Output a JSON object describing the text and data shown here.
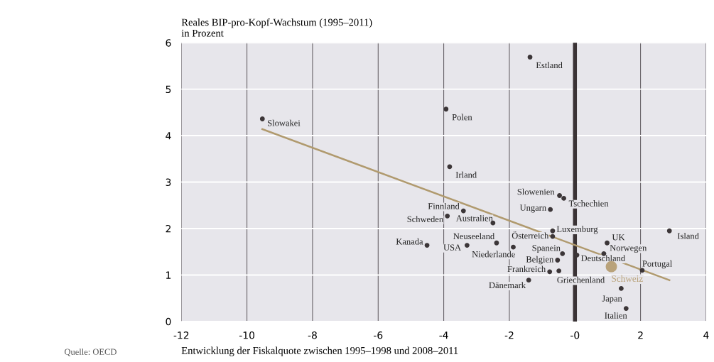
{
  "chart_data": {
    "type": "scatter",
    "ylabel": "Reales BIP-pro-Kopf-Wachstum (1995–2011)\nin Prozent",
    "xlabel": "Entwicklung der Fiskalquote zwischen 1995–1998 und 2008–2011",
    "xlim": [
      -12,
      4
    ],
    "xticks": [
      -12,
      -10,
      -8,
      -6,
      -4,
      -2,
      {
        "value": 0,
        "label": "-0"
      },
      2,
      4
    ],
    "ylim": [
      0,
      6
    ],
    "yticks": [
      0,
      1,
      2,
      3,
      4,
      5,
      6
    ],
    "grid": true,
    "marker": "circle",
    "ref_lines": [
      {
        "axis": "x",
        "value": 0,
        "label": null,
        "color": "#3a3335"
      }
    ],
    "series": [
      {
        "color": "#3c3638",
        "x": [
          -9.53,
          -1.37,
          -3.93,
          -3.82,
          -0.47,
          -0.34,
          -0.75,
          -3.4,
          -3.89,
          -2.5,
          -0.68,
          -0.68,
          -4.51,
          -2.39,
          -3.29,
          -1.88,
          -0.38,
          0.06,
          -0.53,
          -0.77,
          -0.49,
          -1.41,
          0.98,
          0.88,
          2.05,
          1.41,
          1.56,
          2.88
        ],
        "values": [
          4.36,
          5.69,
          4.57,
          3.33,
          2.71,
          2.65,
          2.41,
          2.38,
          2.27,
          2.12,
          1.95,
          1.83,
          1.64,
          1.69,
          1.64,
          1.6,
          1.46,
          1.43,
          1.32,
          1.07,
          1.09,
          0.89,
          1.69,
          1.46,
          1.1,
          0.71,
          0.28,
          1.95
        ]
      },
      {
        "name": "Schweiz",
        "color": "#b9a27a",
        "x": [
          1.11
        ],
        "values": [
          1.18
        ]
      },
      {
        "type": "line",
        "color": "#b09a6e",
        "marker": "none",
        "x": [
          -9.53,
          2.88
        ],
        "values": [
          4.14,
          0.89
        ]
      }
    ],
    "annotations": [
      {
        "text": "Slowakei",
        "x": -9.53,
        "y": 4.36
      },
      {
        "text": "Estland",
        "x": -1.37,
        "y": 5.69
      },
      {
        "text": "Polen",
        "x": -3.93,
        "y": 4.57
      },
      {
        "text": "Irland",
        "x": -3.82,
        "y": 3.33
      },
      {
        "text": "Slowenien",
        "x": -0.47,
        "y": 2.71
      },
      {
        "text": "Tschechien",
        "x": -0.34,
        "y": 2.65
      },
      {
        "text": "Ungarn",
        "x": -0.75,
        "y": 2.41
      },
      {
        "text": "Finnland",
        "x": -3.4,
        "y": 2.38
      },
      {
        "text": "Schweden",
        "x": -3.89,
        "y": 2.27
      },
      {
        "text": "Australien",
        "x": -2.5,
        "y": 2.12
      },
      {
        "text": "Luxemburg",
        "x": -0.68,
        "y": 1.95
      },
      {
        "text": "Österreich",
        "x": -0.68,
        "y": 1.83
      },
      {
        "text": "Kanada",
        "x": -4.51,
        "y": 1.64
      },
      {
        "text": "Neuseeland",
        "x": -2.39,
        "y": 1.69
      },
      {
        "text": "USA",
        "x": -3.29,
        "y": 1.64
      },
      {
        "text": "Niederlande",
        "x": -1.88,
        "y": 1.6
      },
      {
        "text": "Spanein",
        "x": -0.38,
        "y": 1.46
      },
      {
        "text": "Deutschland",
        "x": 0.06,
        "y": 1.43
      },
      {
        "text": "Belgien",
        "x": -0.53,
        "y": 1.32
      },
      {
        "text": "Frankreich",
        "x": -0.77,
        "y": 1.07
      },
      {
        "text": "Griechenland",
        "x": -0.49,
        "y": 1.09
      },
      {
        "text": "Dänemark",
        "x": -1.41,
        "y": 0.89
      },
      {
        "text": "UK",
        "x": 0.98,
        "y": 1.69
      },
      {
        "text": "Norwegen",
        "x": 0.88,
        "y": 1.46
      },
      {
        "text": "Portugal",
        "x": 2.05,
        "y": 1.1
      },
      {
        "text": "Japan",
        "x": 1.41,
        "y": 0.71
      },
      {
        "text": "Italien",
        "x": 1.56,
        "y": 0.28
      },
      {
        "text": "Island",
        "x": 2.88,
        "y": 1.95
      },
      "Quelle: OECD"
    ]
  }
}
